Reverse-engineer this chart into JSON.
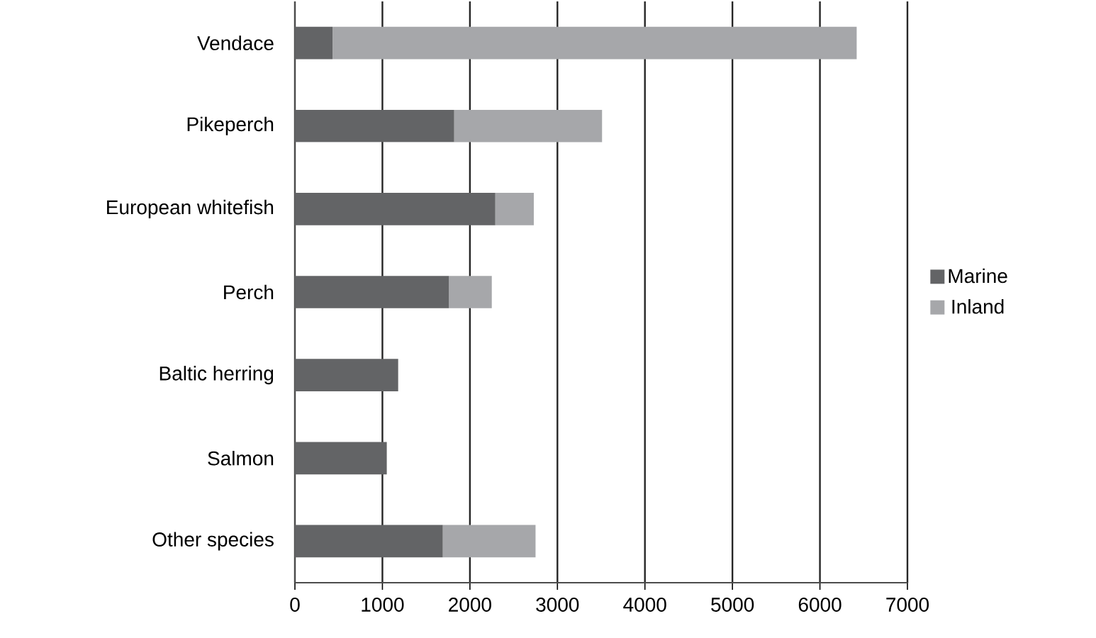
{
  "chart_data": {
    "type": "bar",
    "orientation": "horizontal",
    "stacked": true,
    "categories": [
      "Vendace",
      "Pikeperch",
      "European whitefish",
      "Perch",
      "Baltic herring",
      "Salmon",
      "Other species"
    ],
    "series": [
      {
        "name": "Marine",
        "color": "#636466",
        "values": [
          430,
          1820,
          2290,
          1760,
          1180,
          1050,
          1690
        ]
      },
      {
        "name": "Inland",
        "color": "#a6a7aa",
        "values": [
          5990,
          1690,
          440,
          490,
          null,
          null,
          1060
        ]
      }
    ],
    "xlim": [
      0,
      7000
    ],
    "xticks": [
      0,
      1000,
      2000,
      3000,
      4000,
      5000,
      6000,
      7000
    ],
    "grid": "x",
    "legend": "right"
  }
}
